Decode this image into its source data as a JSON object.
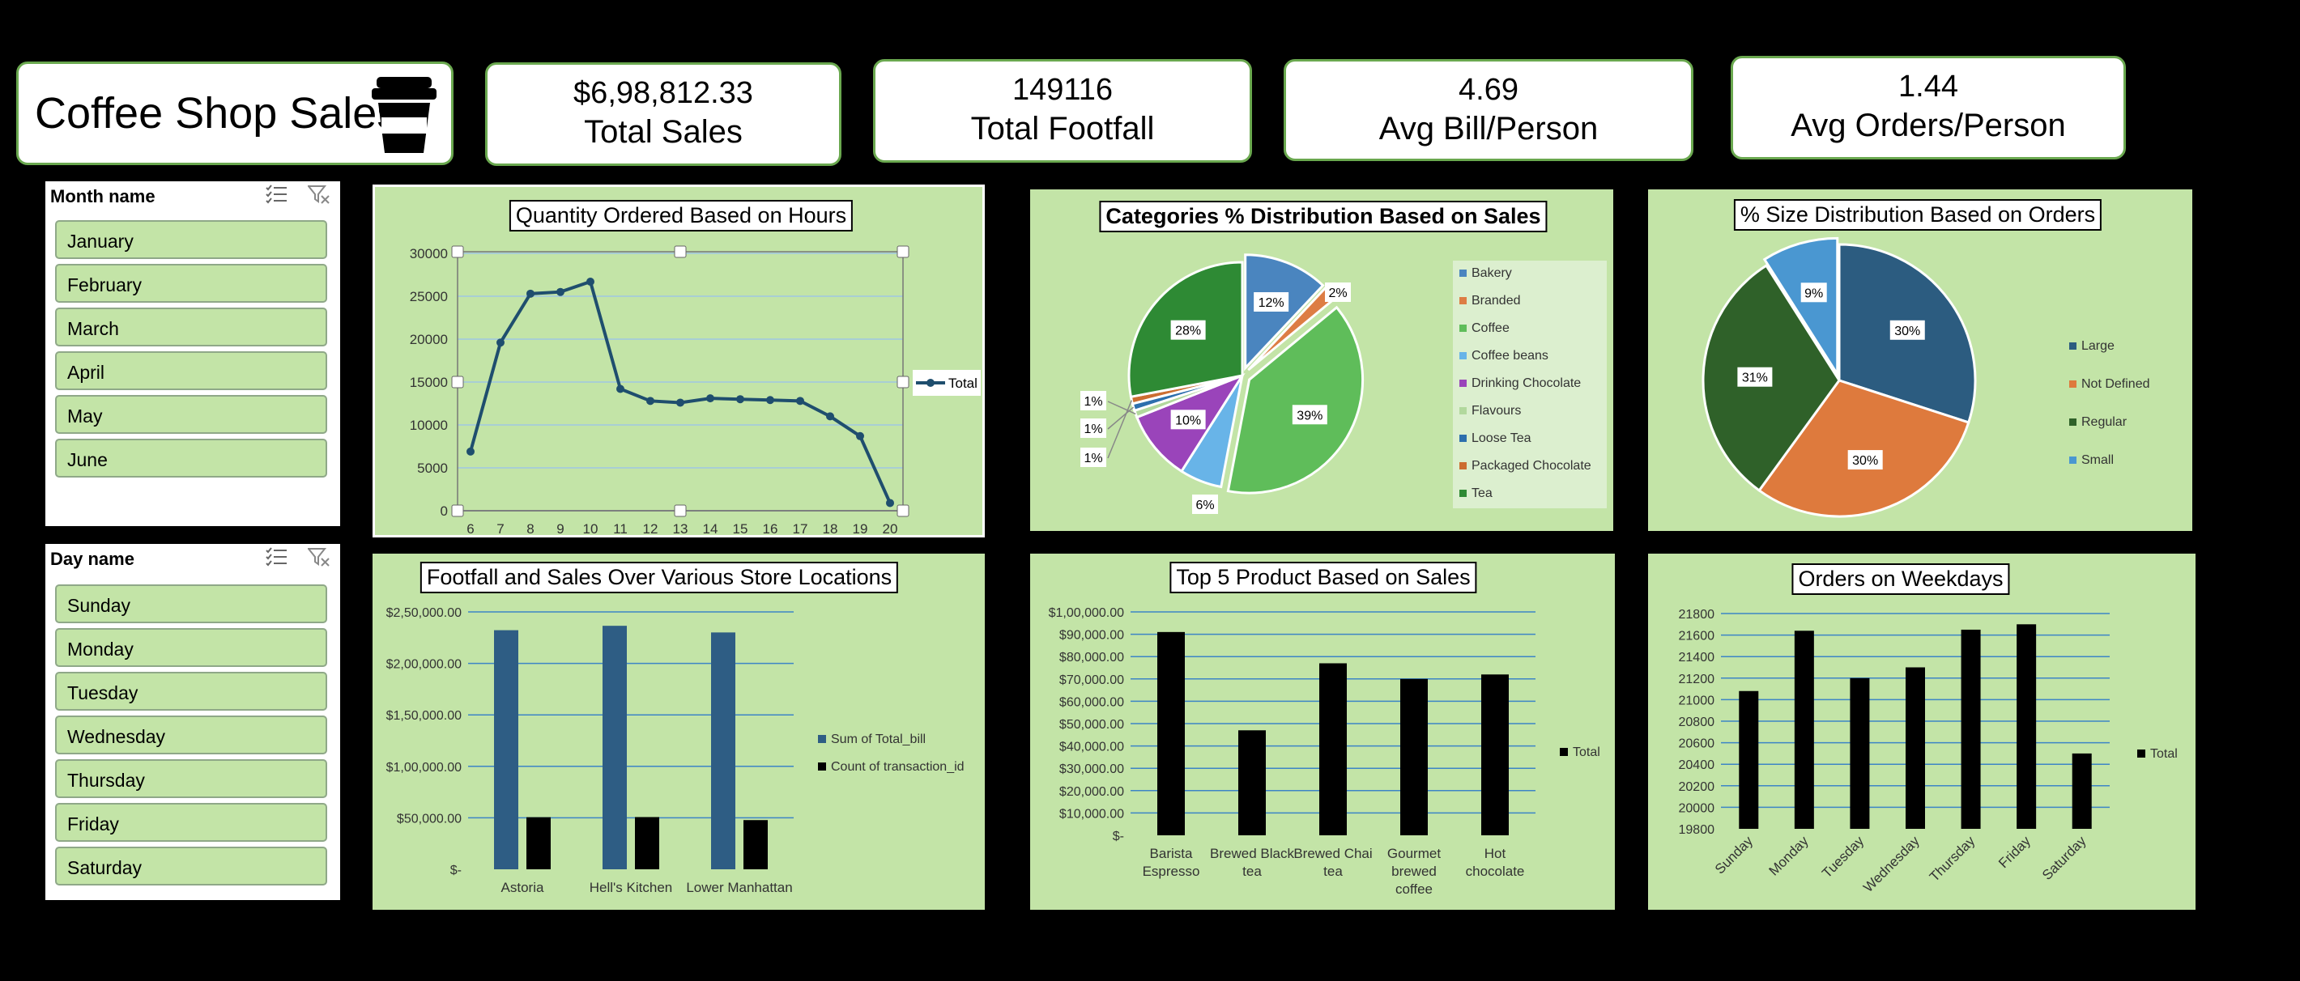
{
  "dashboard": {
    "title": "Coffee Shop Sales",
    "logo_icon": "coffee-cup-icon"
  },
  "kpis": [
    {
      "value": "$6,98,812.33",
      "label": "Total Sales"
    },
    {
      "value": "149116",
      "label": "Total Footfall"
    },
    {
      "value": "4.69",
      "label": "Avg Bill/Person"
    },
    {
      "value": "1.44",
      "label": "Avg Orders/Person"
    }
  ],
  "month_slicer": {
    "header": "Month name",
    "icons": [
      "multi-select-icon",
      "clear-filter-icon"
    ],
    "items": [
      "January",
      "February",
      "March",
      "April",
      "May",
      "June"
    ]
  },
  "day_slicer": {
    "header": "Day name",
    "icons": [
      "multi-select-icon",
      "clear-filter-icon"
    ],
    "items": [
      "Sunday",
      "Monday",
      "Tuesday",
      "Wednesday",
      "Thursday",
      "Friday",
      "Saturday"
    ]
  },
  "colors": {
    "panel_bg": "#c3e4a7",
    "kpi_border": "#6aa84f",
    "bar_blue": "#2e5d84",
    "bar_black": "#000000",
    "line": "#1f4e6e"
  },
  "chart_data": [
    {
      "id": "hours",
      "type": "line",
      "title": "Quantity Ordered Based on Hours",
      "x": [
        6,
        7,
        8,
        9,
        10,
        11,
        12,
        13,
        14,
        15,
        16,
        17,
        18,
        19,
        20
      ],
      "series": [
        {
          "name": "Total",
          "values": [
            6900,
            19600,
            25300,
            25500,
            26700,
            14200,
            12800,
            12600,
            13100,
            13000,
            12900,
            12800,
            11000,
            8700,
            900
          ]
        }
      ],
      "ylim": [
        0,
        30000
      ],
      "yticks": [
        "0",
        "5000",
        "10000",
        "15000",
        "20000",
        "25000",
        "30000"
      ],
      "legend": "right",
      "grid": true
    },
    {
      "id": "categories",
      "type": "pie",
      "title": "Categories % Distribution Based on Sales",
      "labels": [
        "Bakery",
        "Branded",
        "Coffee",
        "Coffee beans",
        "Drinking Chocolate",
        "Flavours",
        "Loose Tea",
        "Packaged Chocolate",
        "Tea"
      ],
      "values": [
        12,
        2,
        39,
        6,
        10,
        1,
        1,
        1,
        28
      ],
      "data_labels": [
        "12%",
        "2%",
        "39%",
        "6%",
        "10%",
        "1%",
        "1%",
        "1%",
        "28%"
      ],
      "colors": [
        "#4a85bf",
        "#dd7d44",
        "#5fbd5a",
        "#68b4e8",
        "#9a44ba",
        "#b2d89d",
        "#2d6fad",
        "#cc6d31",
        "#2e8a34"
      ],
      "legend": "right"
    },
    {
      "id": "sizes",
      "type": "pie",
      "title": "% Size Distribution Based on Orders",
      "labels": [
        "Large",
        "Not Defined",
        "Regular",
        "Small"
      ],
      "values": [
        30,
        30,
        31,
        9
      ],
      "data_labels": [
        "30%",
        "30%",
        "31%",
        "9%"
      ],
      "colors": [
        "#2c5c80",
        "#de7a3d",
        "#2f6129",
        "#4a97d1"
      ],
      "legend": "right"
    },
    {
      "id": "locations",
      "type": "bar",
      "title": "Footfall and Sales Over Various Store Locations",
      "categories": [
        "Astoria",
        "Hell's Kitchen",
        "Lower Manhattan"
      ],
      "series": [
        {
          "name": "Sum of Total_bill",
          "values": [
            232243.91,
            236511.17,
            230057.25
          ]
        },
        {
          "name": "Count of transaction_id",
          "values": [
            50599,
            50735,
            47782
          ]
        }
      ],
      "ylim": [
        0,
        250000
      ],
      "yticks": [
        "$-",
        "$50,000.00",
        "$1,00,000.00",
        "$1,50,000.00",
        "$2,00,000.00",
        "$2,50,000.00"
      ],
      "legend": "right"
    },
    {
      "id": "products",
      "type": "bar",
      "title": "Top 5 Product Based on Sales",
      "categories": [
        "Barista Espresso",
        "Brewed Black tea",
        "Brewed Chai tea",
        "Gourmet brewed coffee",
        "Hot chocolate"
      ],
      "series": [
        {
          "name": "Total",
          "values": [
            91000,
            47000,
            77000,
            70000,
            72000
          ]
        }
      ],
      "ylim": [
        0,
        100000
      ],
      "yticks": [
        "$-",
        "$10,000.00",
        "$20,000.00",
        "$30,000.00",
        "$40,000.00",
        "$50,000.00",
        "$60,000.00",
        "$70,000.00",
        "$80,000.00",
        "$90,000.00",
        "$1,00,000.00"
      ],
      "legend": "right"
    },
    {
      "id": "weekdays",
      "type": "bar",
      "title": "Orders on Weekdays",
      "categories": [
        "Sunday",
        "Monday",
        "Tuesday",
        "Wednesday",
        "Thursday",
        "Friday",
        "Saturday"
      ],
      "series": [
        {
          "name": "Total",
          "values": [
            21080,
            21640,
            21200,
            21300,
            21650,
            21700,
            20500
          ]
        }
      ],
      "ylim": [
        19800,
        21800
      ],
      "yticks": [
        "19800",
        "20000",
        "20200",
        "20400",
        "20600",
        "20800",
        "21000",
        "21200",
        "21400",
        "21600",
        "21800"
      ],
      "legend": "right"
    }
  ]
}
